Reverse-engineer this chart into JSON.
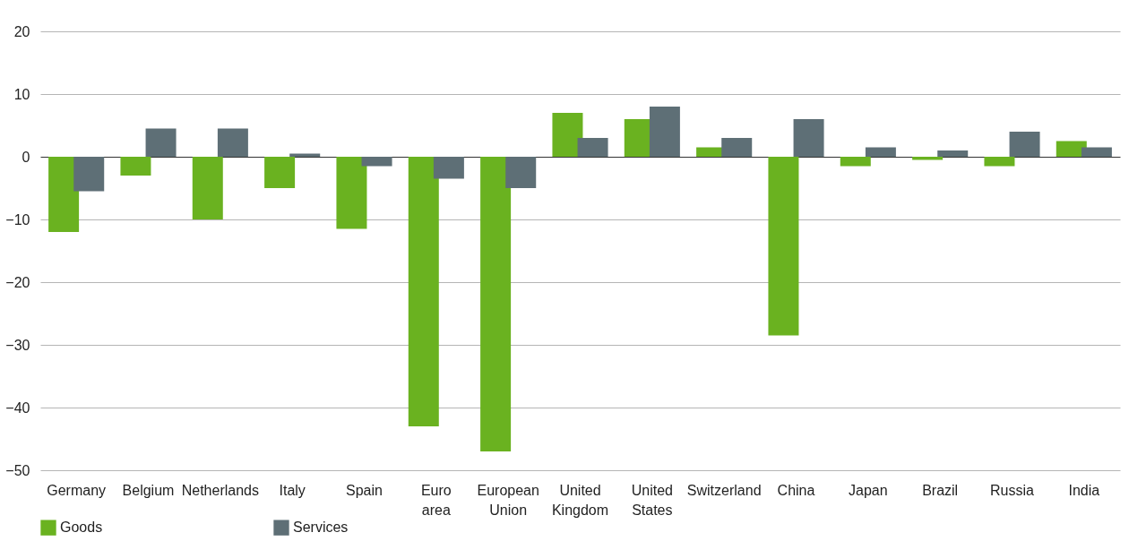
{
  "chart_data": {
    "type": "bar",
    "categories": [
      "Germany",
      "Belgium",
      "Netherlands",
      "Italy",
      "Spain",
      "Euro area",
      "European Union",
      "United Kingdom",
      "United States",
      "Switzerland",
      "China",
      "Japan",
      "Brazil",
      "Russia",
      "India"
    ],
    "series": [
      {
        "name": "Goods",
        "color": "#6ab220",
        "values": [
          -12,
          -3,
          -10,
          -5,
          -11.5,
          -43,
          -47,
          7,
          6,
          1.5,
          -28.5,
          -1.5,
          -0.5,
          -1.5,
          2.5
        ]
      },
      {
        "name": "Services",
        "color": "#5e6f76",
        "values": [
          -5.5,
          4.5,
          4.5,
          0.5,
          -1.5,
          -3.5,
          -5,
          3,
          8,
          3,
          6,
          1.5,
          1,
          4,
          1.5
        ]
      }
    ],
    "ylim": [
      -50,
      20
    ],
    "yticks": [
      -50,
      -40,
      -30,
      -20,
      -10,
      0,
      10,
      20
    ],
    "grid": "y",
    "legend": "bottom left"
  }
}
